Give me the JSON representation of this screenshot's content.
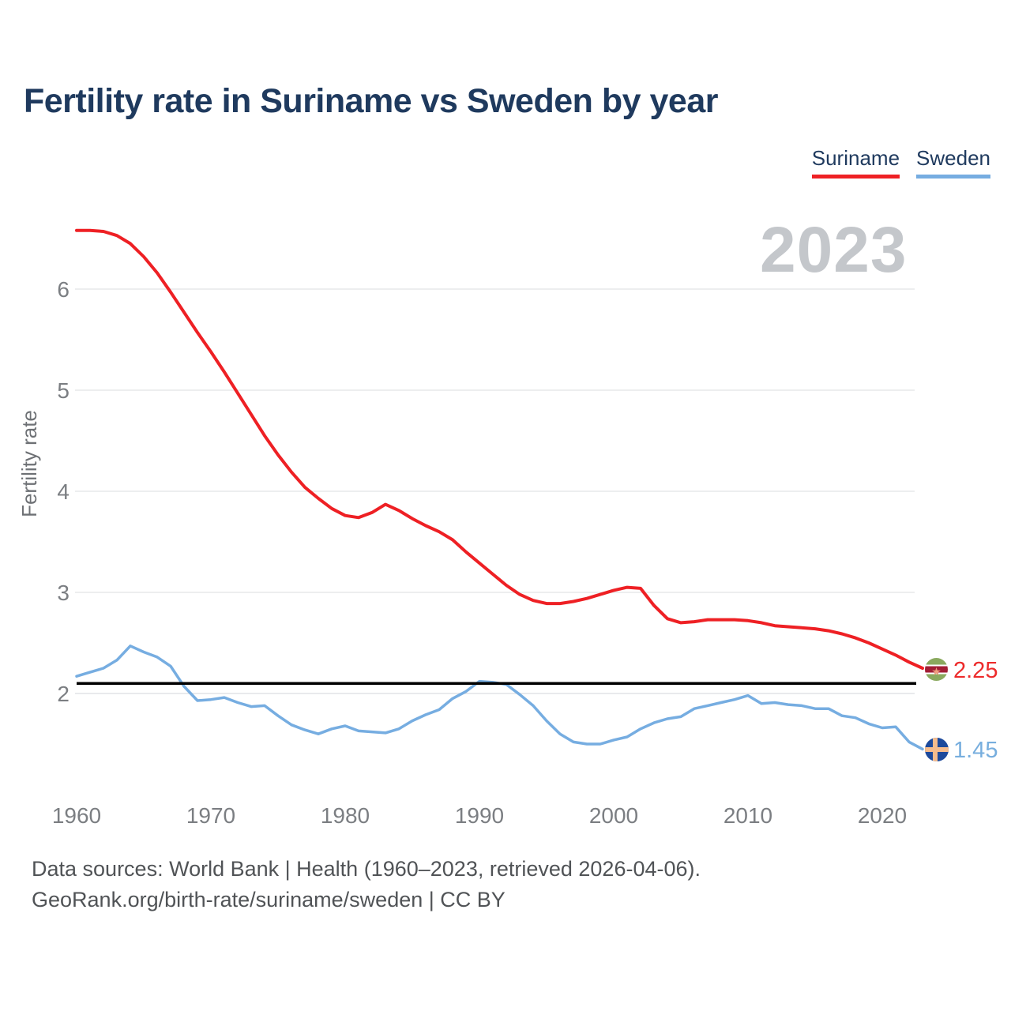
{
  "title": "Fertility rate in Suriname vs Sweden by year",
  "legend": {
    "suriname_label": "Suriname",
    "sweden_label": "Sweden",
    "suriname_color": "#ee2024",
    "sweden_color": "#76ade1"
  },
  "watermark_year": "2023",
  "chart_data": {
    "type": "line",
    "title": "Fertility rate in Suriname vs Sweden by year",
    "xlabel": "",
    "ylabel": "Fertility rate",
    "grid": "horizontal",
    "legend_position": "top-right",
    "ylim": [
      1.0,
      6.7
    ],
    "xlim": [
      1960,
      2023
    ],
    "y_tick_labels": [
      "6",
      "5",
      "4",
      "3",
      "2"
    ],
    "x_tick_labels": [
      "1960",
      "1970",
      "1980",
      "1990",
      "2000",
      "2010",
      "2020"
    ],
    "x": [
      1960,
      1961,
      1962,
      1963,
      1964,
      1965,
      1966,
      1967,
      1968,
      1969,
      1970,
      1971,
      1972,
      1973,
      1974,
      1975,
      1976,
      1977,
      1978,
      1979,
      1980,
      1981,
      1982,
      1983,
      1984,
      1985,
      1986,
      1987,
      1988,
      1989,
      1990,
      1991,
      1992,
      1993,
      1994,
      1995,
      1996,
      1997,
      1998,
      1999,
      2000,
      2001,
      2002,
      2003,
      2004,
      2005,
      2006,
      2007,
      2008,
      2009,
      2010,
      2011,
      2012,
      2013,
      2014,
      2015,
      2016,
      2017,
      2018,
      2019,
      2020,
      2021,
      2022,
      2023
    ],
    "series": [
      {
        "name": "Suriname",
        "color": "#ee2024",
        "stroke_width": 4,
        "end_label": "2.25",
        "values": [
          6.58,
          6.58,
          6.57,
          6.53,
          6.45,
          6.32,
          6.16,
          5.97,
          5.77,
          5.57,
          5.38,
          5.18,
          4.97,
          4.76,
          4.55,
          4.36,
          4.19,
          4.04,
          3.93,
          3.83,
          3.76,
          3.74,
          3.79,
          3.87,
          3.81,
          3.73,
          3.66,
          3.6,
          3.52,
          3.4,
          3.29,
          3.18,
          3.07,
          2.98,
          2.92,
          2.89,
          2.89,
          2.91,
          2.94,
          2.98,
          3.02,
          3.05,
          3.04,
          2.87,
          2.74,
          2.7,
          2.71,
          2.73,
          2.73,
          2.73,
          2.72,
          2.7,
          2.67,
          2.66,
          2.65,
          2.64,
          2.62,
          2.59,
          2.55,
          2.5,
          2.44,
          2.38,
          2.31,
          2.25
        ]
      },
      {
        "name": "Sweden",
        "color": "#76ade1",
        "stroke_width": 3.5,
        "end_label": "1.45",
        "values": [
          2.17,
          2.21,
          2.25,
          2.33,
          2.47,
          2.41,
          2.36,
          2.27,
          2.07,
          1.93,
          1.94,
          1.96,
          1.91,
          1.87,
          1.88,
          1.78,
          1.69,
          1.64,
          1.6,
          1.65,
          1.68,
          1.63,
          1.62,
          1.61,
          1.65,
          1.73,
          1.79,
          1.84,
          1.95,
          2.02,
          2.12,
          2.11,
          2.09,
          1.99,
          1.88,
          1.73,
          1.6,
          1.52,
          1.5,
          1.5,
          1.54,
          1.57,
          1.65,
          1.71,
          1.75,
          1.77,
          1.85,
          1.88,
          1.91,
          1.94,
          1.98,
          1.9,
          1.91,
          1.89,
          1.88,
          1.85,
          1.85,
          1.78,
          1.76,
          1.7,
          1.66,
          1.67,
          1.52,
          1.45
        ]
      }
    ],
    "reference_line": {
      "value": 2.1,
      "color": "#000000"
    }
  },
  "end_markers": {
    "suriname_value": "2.25",
    "sweden_value": "1.45",
    "suriname_flag": "suriname-flag-icon",
    "sweden_flag": "sweden-flag-icon"
  },
  "footer": {
    "line1": "Data sources: World Bank | Health (1960–2023, retrieved 2026-04-06).",
    "line2": "GeoRank.org/birth-rate/suriname/sweden | CC BY"
  }
}
